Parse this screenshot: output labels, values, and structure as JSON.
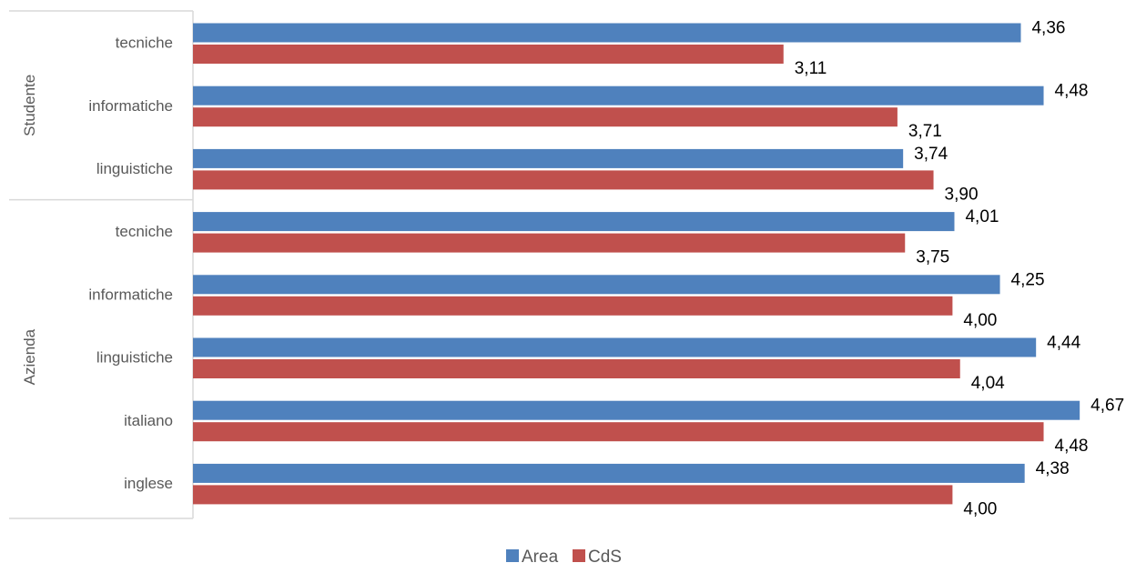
{
  "chart_data": {
    "type": "bar",
    "orientation": "horizontal",
    "groups": [
      {
        "label": "Studente",
        "categories": [
          "tecniche",
          "informatiche",
          "linguistiche"
        ]
      },
      {
        "label": "Azienda",
        "categories": [
          "tecniche",
          "informatiche",
          "linguistiche",
          "italiano",
          "inglese"
        ]
      }
    ],
    "categories": [
      "tecniche",
      "informatiche",
      "linguistiche",
      "tecniche",
      "informatiche",
      "linguistiche",
      "italiano",
      "inglese"
    ],
    "series": [
      {
        "name": "Area",
        "color": "#4F81BD",
        "values": [
          4.36,
          4.48,
          3.74,
          4.01,
          4.25,
          4.44,
          4.67,
          4.38
        ],
        "labels": [
          "4,36",
          "4,48",
          "3,74",
          "4,01",
          "4,25",
          "4,44",
          "4,67",
          "4,38"
        ]
      },
      {
        "name": "CdS",
        "color": "#C0504D",
        "values": [
          3.11,
          3.71,
          3.9,
          3.75,
          4.0,
          4.04,
          4.48,
          4.0
        ],
        "labels": [
          "3,11",
          "3,71",
          "3,90",
          "3,75",
          "4,00",
          "4,04",
          "4,48",
          "4,00"
        ]
      }
    ],
    "xlim": [
      0,
      5
    ],
    "grid": false,
    "legend_position": "bottom",
    "axis_color": "#D9D9D9"
  }
}
